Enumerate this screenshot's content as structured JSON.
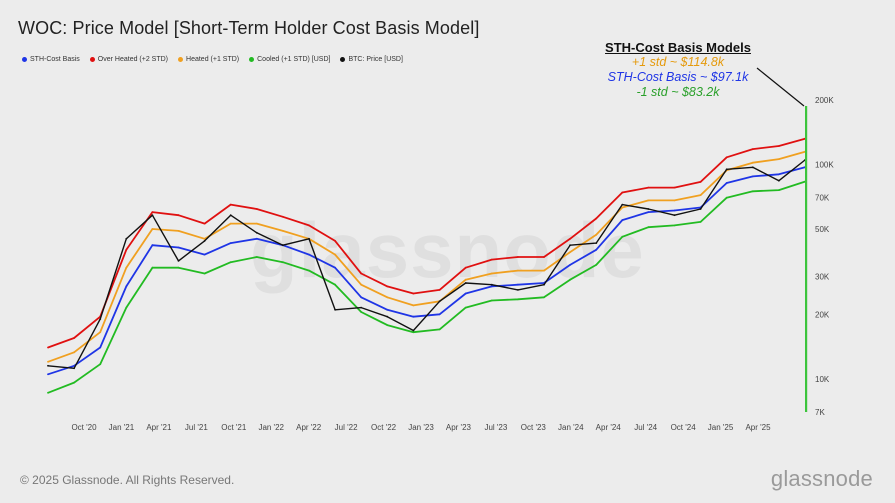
{
  "header": {
    "title": "WOC: Price Model [Short-Term Holder Cost Basis Model]"
  },
  "legend": [
    {
      "label": "STH-Cost Basis",
      "color": "#1f35e6"
    },
    {
      "label": "Over Heated (+2 STD)",
      "color": "#e01010"
    },
    {
      "label": "Heated (+1 STD)",
      "color": "#f0a020"
    },
    {
      "label": "Cooled (+1 STD) [USD]",
      "color": "#22bb22"
    },
    {
      "label": "BTC: Price [USD]",
      "color": "#111111"
    }
  ],
  "callout": {
    "title": "STH-Cost Basis Models",
    "plus1": "+1 std ~ $114.8k",
    "base": "STH-Cost Basis ~ $97.1k",
    "minus1": "-1 std ~ $83.2k",
    "plus1_color": "#e59a0c",
    "base_color": "#1f35e6",
    "minus1_color": "#2aa02a"
  },
  "footer": {
    "copyright": "© 2025 Glassnode. All Rights Reserved.",
    "brand": "glassnode",
    "watermark": "glassnode"
  },
  "chart_data": {
    "type": "line",
    "scale": "log",
    "x_ticks": [
      "Oct '20",
      "Jan '21",
      "Apr '21",
      "Jul '21",
      "Oct '21",
      "Jan '22",
      "Apr '22",
      "Jul '22",
      "Oct '22",
      "Jan '23",
      "Apr '23",
      "Jul '23",
      "Oct '23",
      "Jan '24",
      "Apr '24",
      "Jul '24",
      "Oct '24",
      "Jan '25",
      "Apr '25"
    ],
    "y_ticks": [
      {
        "value": 7000,
        "label": "7K"
      },
      {
        "value": 10000,
        "label": "10K"
      },
      {
        "value": 20000,
        "label": "20K"
      },
      {
        "value": 30000,
        "label": "30K"
      },
      {
        "value": 50000,
        "label": "50K"
      },
      {
        "value": 70000,
        "label": "70K"
      },
      {
        "value": 100000,
        "label": "100K"
      },
      {
        "value": 200000,
        "label": "200K"
      }
    ],
    "ylim": [
      7000,
      200000
    ],
    "x": [
      "2020-08",
      "2020-10",
      "2020-12",
      "2021-02",
      "2021-04",
      "2021-06",
      "2021-08",
      "2021-10",
      "2021-12",
      "2022-02",
      "2022-04",
      "2022-06",
      "2022-08",
      "2022-10",
      "2022-12",
      "2023-02",
      "2023-04",
      "2023-06",
      "2023-08",
      "2023-10",
      "2023-12",
      "2024-02",
      "2024-04",
      "2024-06",
      "2024-08",
      "2024-10",
      "2024-12",
      "2025-02",
      "2025-04",
      "2025-06"
    ],
    "series": [
      {
        "name": "BTC: Price [USD]",
        "color": "#111111",
        "values": [
          11500,
          11200,
          19000,
          45000,
          58000,
          35500,
          44000,
          58000,
          48000,
          42000,
          45000,
          21000,
          21500,
          19500,
          16800,
          23000,
          28000,
          27500,
          26000,
          27500,
          42000,
          43000,
          65000,
          62000,
          58000,
          62000,
          95000,
          97000,
          84000,
          105000
        ]
      },
      {
        "name": "STH-Cost Basis",
        "color": "#1f35e6",
        "values": [
          10500,
          11500,
          14000,
          27000,
          42000,
          41000,
          38000,
          43000,
          45000,
          42000,
          38000,
          33000,
          24000,
          21000,
          19500,
          20000,
          25000,
          27000,
          27500,
          28000,
          34000,
          40000,
          55000,
          60000,
          61000,
          63000,
          82000,
          88000,
          90000,
          97100
        ]
      },
      {
        "name": "Over Heated (+2 STD)",
        "color": "#e01010",
        "values": [
          14000,
          15500,
          19500,
          40000,
          60000,
          58000,
          53000,
          65000,
          62000,
          57000,
          52000,
          44000,
          31000,
          27000,
          25000,
          26000,
          33000,
          36000,
          37000,
          37000,
          45000,
          56000,
          74000,
          78000,
          78000,
          83000,
          108000,
          118000,
          122000,
          132000
        ]
      },
      {
        "name": "Heated (+1 STD)",
        "color": "#f0a020",
        "values": [
          12000,
          13300,
          16500,
          33000,
          50000,
          49000,
          45000,
          53000,
          53000,
          49000,
          45000,
          38000,
          27500,
          24000,
          22000,
          23000,
          29000,
          31000,
          32000,
          32000,
          39000,
          47000,
          63000,
          68000,
          68000,
          72000,
          94000,
          102000,
          106000,
          114800
        ]
      },
      {
        "name": "Cooled (+1 STD) [USD]",
        "color": "#22bb22",
        "values": [
          8600,
          9600,
          11700,
          21500,
          33000,
          33000,
          31000,
          35000,
          37000,
          35000,
          32000,
          27500,
          20500,
          17800,
          16500,
          17000,
          21500,
          23200,
          23500,
          24000,
          29000,
          34000,
          46000,
          51000,
          52000,
          54000,
          70000,
          75000,
          76000,
          83200
        ]
      }
    ]
  }
}
